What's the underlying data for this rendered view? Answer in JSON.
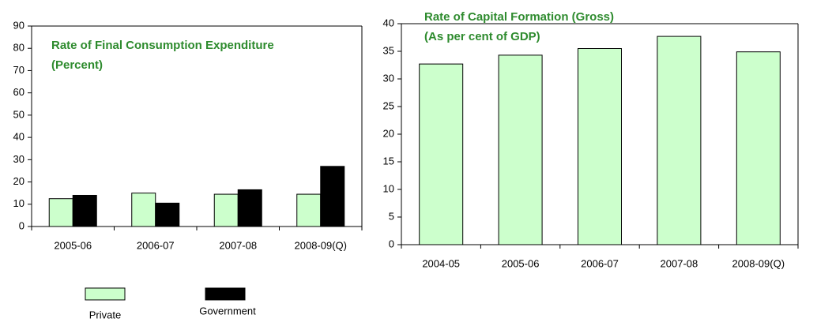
{
  "chart_data": [
    {
      "type": "bar",
      "title_lines": [
        "Rate of Final Consumption Expenditure",
        "(Percent)"
      ],
      "categories": [
        "2005-06",
        "2006-07",
        "2007-08",
        "2008-09(Q)"
      ],
      "series": [
        {
          "name": "Private",
          "color": "#ccffcc",
          "values": [
            12.5,
            15,
            14.5,
            14.5
          ]
        },
        {
          "name": "Government",
          "color": "#000000",
          "values": [
            14,
            10.5,
            16.5,
            27
          ]
        }
      ],
      "ylim": [
        0,
        90
      ],
      "yticks": [
        0,
        10,
        20,
        30,
        40,
        50,
        60,
        70,
        80,
        90
      ],
      "legend": "bottom"
    },
    {
      "type": "bar",
      "title_lines": [
        "Rate of Capital Formation (Gross)",
        "(As per cent of GDP)"
      ],
      "categories": [
        "2004-05",
        "2005-06",
        "2006-07",
        "2007-08",
        "2008-09(Q)"
      ],
      "values": [
        32.7,
        34.3,
        35.5,
        37.7,
        34.9
      ],
      "color": "#ccffcc",
      "ylim": [
        0,
        40
      ],
      "yticks": [
        0,
        5,
        10,
        15,
        20,
        25,
        30,
        35,
        40
      ]
    }
  ]
}
